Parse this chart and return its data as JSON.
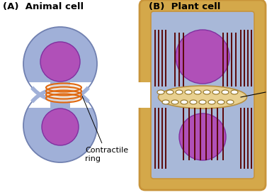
{
  "title_a": "(A)  Animal cell",
  "title_b": "(B)  Plant cell",
  "bg_color": "#ffffff",
  "cell_fill": "#a0b0d8",
  "cell_edge": "#7080b0",
  "nucleus_fill": "#b050b8",
  "nucleus_edge": "#8030a0",
  "ring_color": "#e06810",
  "ring_fill": "#f5e8d8",
  "plant_wall_outer": "#c8943a",
  "plant_wall_fill": "#d4a84a",
  "plant_cell_fill": "#a8b8d8",
  "phrag_fill": "#e8d090",
  "phrag_edge": "#b89040",
  "vesicle_fill": "#ffffff",
  "vesicle_edge": "#907020",
  "mt_color": "#5a0808",
  "label_color": "#000000",
  "label_fontsize": 8.0,
  "title_fontsize": 9.5
}
